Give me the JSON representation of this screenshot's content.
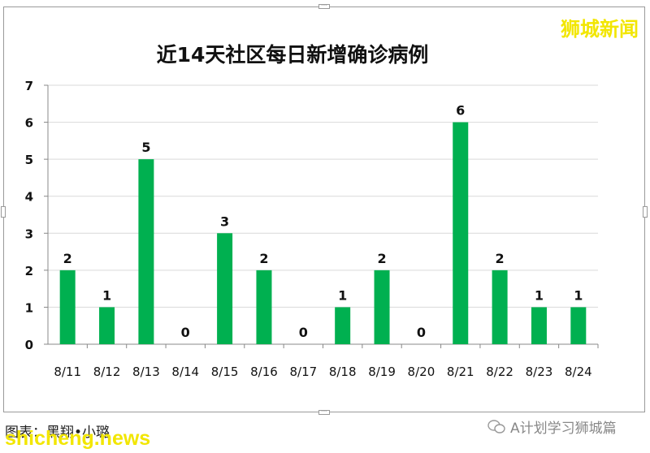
{
  "chart_data": {
    "type": "bar",
    "title": "近14天社区每日新增确诊病例",
    "categories": [
      "8/11",
      "8/12",
      "8/13",
      "8/14",
      "8/15",
      "8/16",
      "8/17",
      "8/18",
      "8/19",
      "8/20",
      "8/21",
      "8/22",
      "8/23",
      "8/24"
    ],
    "values": [
      2,
      1,
      5,
      0,
      3,
      2,
      0,
      1,
      2,
      0,
      6,
      2,
      1,
      1
    ],
    "ylim": [
      0,
      7
    ],
    "yticks": [
      0,
      1,
      2,
      3,
      4,
      5,
      6,
      7
    ],
    "xlabel": "",
    "ylabel": "",
    "grid": true,
    "colors": {
      "bar": "#00b050",
      "grid": "#d9d9d9",
      "axis": "#888888"
    }
  },
  "watermark": {
    "top_right": "狮城新闻",
    "site": "shicheng.news"
  },
  "credit": "图表：黑翔•小璐",
  "wechat_account": "A计划学习狮城篇"
}
